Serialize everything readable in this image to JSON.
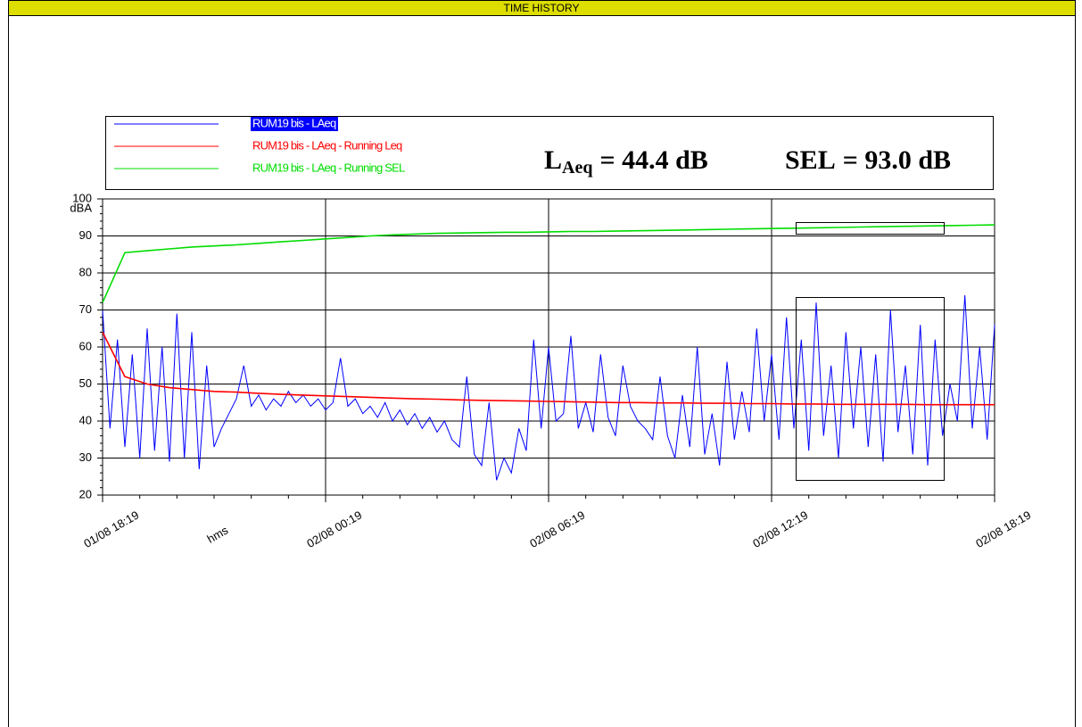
{
  "chart_data": {
    "type": "line",
    "header": "TIME HISTORY",
    "x_label": "hms",
    "y_label": "dBA",
    "x_labels": [
      "01/08 18:19",
      "02/08 00:19",
      "02/08 06:19",
      "02/08 12:19",
      "02/08 18:19"
    ],
    "ylim": [
      20,
      100
    ],
    "yticks": [
      20,
      30,
      40,
      50,
      60,
      70,
      80,
      90,
      100
    ],
    "grid": true,
    "annotations": [
      {
        "symbol": "L",
        "subscript": "Aeq",
        "text": "= 44.4 dB"
      },
      {
        "symbol": "SEL",
        "subscript": "",
        "text": "= 93.0 dB"
      }
    ],
    "series": [
      {
        "name": "RUM19 bis - LAeq",
        "color": "#0000ff",
        "values": [
          70,
          38,
          62,
          33,
          58,
          30,
          65,
          32,
          60,
          29,
          69,
          30,
          64,
          27,
          55,
          33,
          38,
          42,
          46,
          55,
          44,
          47,
          43,
          46,
          44,
          48,
          45,
          47,
          44,
          46,
          43,
          45,
          57,
          44,
          46,
          42,
          44,
          41,
          45,
          40,
          43,
          39,
          42,
          38,
          41,
          37,
          40,
          35,
          33,
          52,
          31,
          28,
          45,
          24,
          30,
          26,
          38,
          32,
          62,
          38,
          60,
          40,
          42,
          63,
          38,
          45,
          37,
          58,
          41,
          36,
          55,
          44,
          40,
          38,
          35,
          52,
          36,
          30,
          47,
          33,
          60,
          31,
          42,
          28,
          56,
          35,
          48,
          37,
          65,
          40,
          58,
          35,
          68,
          38,
          62,
          32,
          72,
          36,
          55,
          30,
          64,
          38,
          60,
          33,
          58,
          29,
          70,
          37,
          55,
          31,
          66,
          28,
          62,
          36,
          50,
          40,
          74,
          38,
          60,
          35,
          66
        ]
      },
      {
        "name": "RUM19 bis - LAeq - Running Leq",
        "color": "#ff0000",
        "values": [
          64,
          52,
          50,
          49,
          48.5,
          48,
          47.8,
          47.5,
          47.2,
          47,
          46.8,
          46.6,
          46.4,
          46.2,
          46,
          45.9,
          45.7,
          45.6,
          45.5,
          45.4,
          45.3,
          45.2,
          45.1,
          45,
          45,
          44.9,
          44.9,
          44.8,
          44.8,
          44.7,
          44.7,
          44.6,
          44.6,
          44.5,
          44.5,
          44.5,
          44.5,
          44.4,
          44.4,
          44.4,
          44.4
        ]
      },
      {
        "name": "RUM19 bis - LAeq - Running SEL",
        "color": "#00dd00",
        "values": [
          72,
          85.5,
          86,
          86.5,
          87,
          87.3,
          87.6,
          88,
          88.4,
          88.8,
          89.2,
          89.6,
          90,
          90.3,
          90.5,
          90.7,
          90.8,
          90.9,
          91,
          91,
          91.1,
          91.2,
          91.2,
          91.3,
          91.4,
          91.5,
          91.6,
          91.7,
          91.8,
          91.9,
          92,
          92.1,
          92.2,
          92.3,
          92.4,
          92.5,
          92.6,
          92.7,
          92.8,
          92.9,
          93
        ]
      }
    ]
  }
}
